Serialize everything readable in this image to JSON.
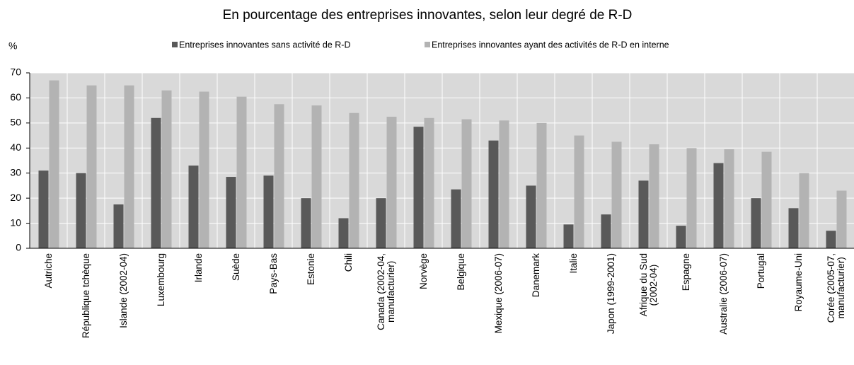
{
  "chart_data": {
    "type": "bar",
    "title": "En pourcentage des entreprises innovantes, selon leur degré de R-D",
    "ylabel": "%",
    "categories": [
      "Autriche",
      "République tchèque",
      "Islande (2002-04)",
      "Luxembourg",
      "Irlande",
      "Suède",
      "Pays-Bas",
      "Estonie",
      "Chili",
      "Canada (2002-04,\nmanufacturier)",
      "Norvège",
      "Belgique",
      "Mexique (2006-07)",
      "Danemark",
      "Italie",
      "Japon (1999-2001)",
      "Afrique du Sud\n(2002-04)",
      "Espagne",
      "Australie (2006-07)",
      "Portugal",
      "Royaume-Uni",
      "Corée (2005-07,\nmanufacturier)"
    ],
    "series": [
      {
        "name": "Entreprises innovantes sans activité de R-D",
        "color": "#595959",
        "values": [
          31,
          30,
          17.5,
          52,
          33,
          28.5,
          29,
          20,
          12,
          20,
          48.5,
          23.5,
          43,
          25,
          9.5,
          13.5,
          27,
          9,
          34,
          20,
          16,
          7
        ]
      },
      {
        "name": "Entreprises innovantes ayant des activités de R-D en interne",
        "color": "#b3b3b3",
        "values": [
          67,
          65,
          65,
          63,
          62.5,
          60.5,
          57.5,
          57,
          54,
          52.5,
          52,
          51.5,
          51,
          50,
          45,
          42.5,
          41.5,
          40,
          39.5,
          38.5,
          30,
          23
        ]
      }
    ],
    "ylim": [
      0,
      70
    ],
    "yticks": [
      0,
      10,
      20,
      30,
      40,
      50,
      60,
      70
    ],
    "grid": true
  }
}
